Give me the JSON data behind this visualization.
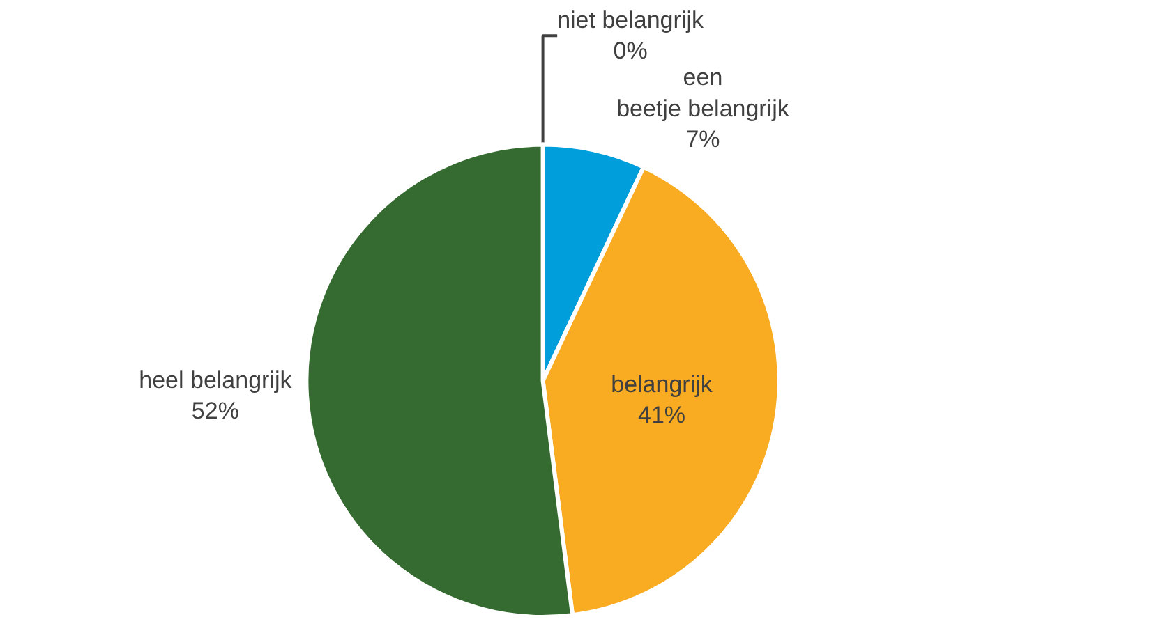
{
  "chart_data": {
    "type": "pie",
    "categories": [
      "niet belangrijk",
      "een beetje belangrijk",
      "belangrijk",
      "heel belangrijk"
    ],
    "values": [
      0,
      7,
      41,
      52
    ],
    "colors": [
      "#a5a5a5",
      "#009fdb",
      "#f9ab22",
      "#356b30"
    ],
    "value_labels": [
      "0%",
      "7%",
      "41%",
      "52%"
    ]
  }
}
